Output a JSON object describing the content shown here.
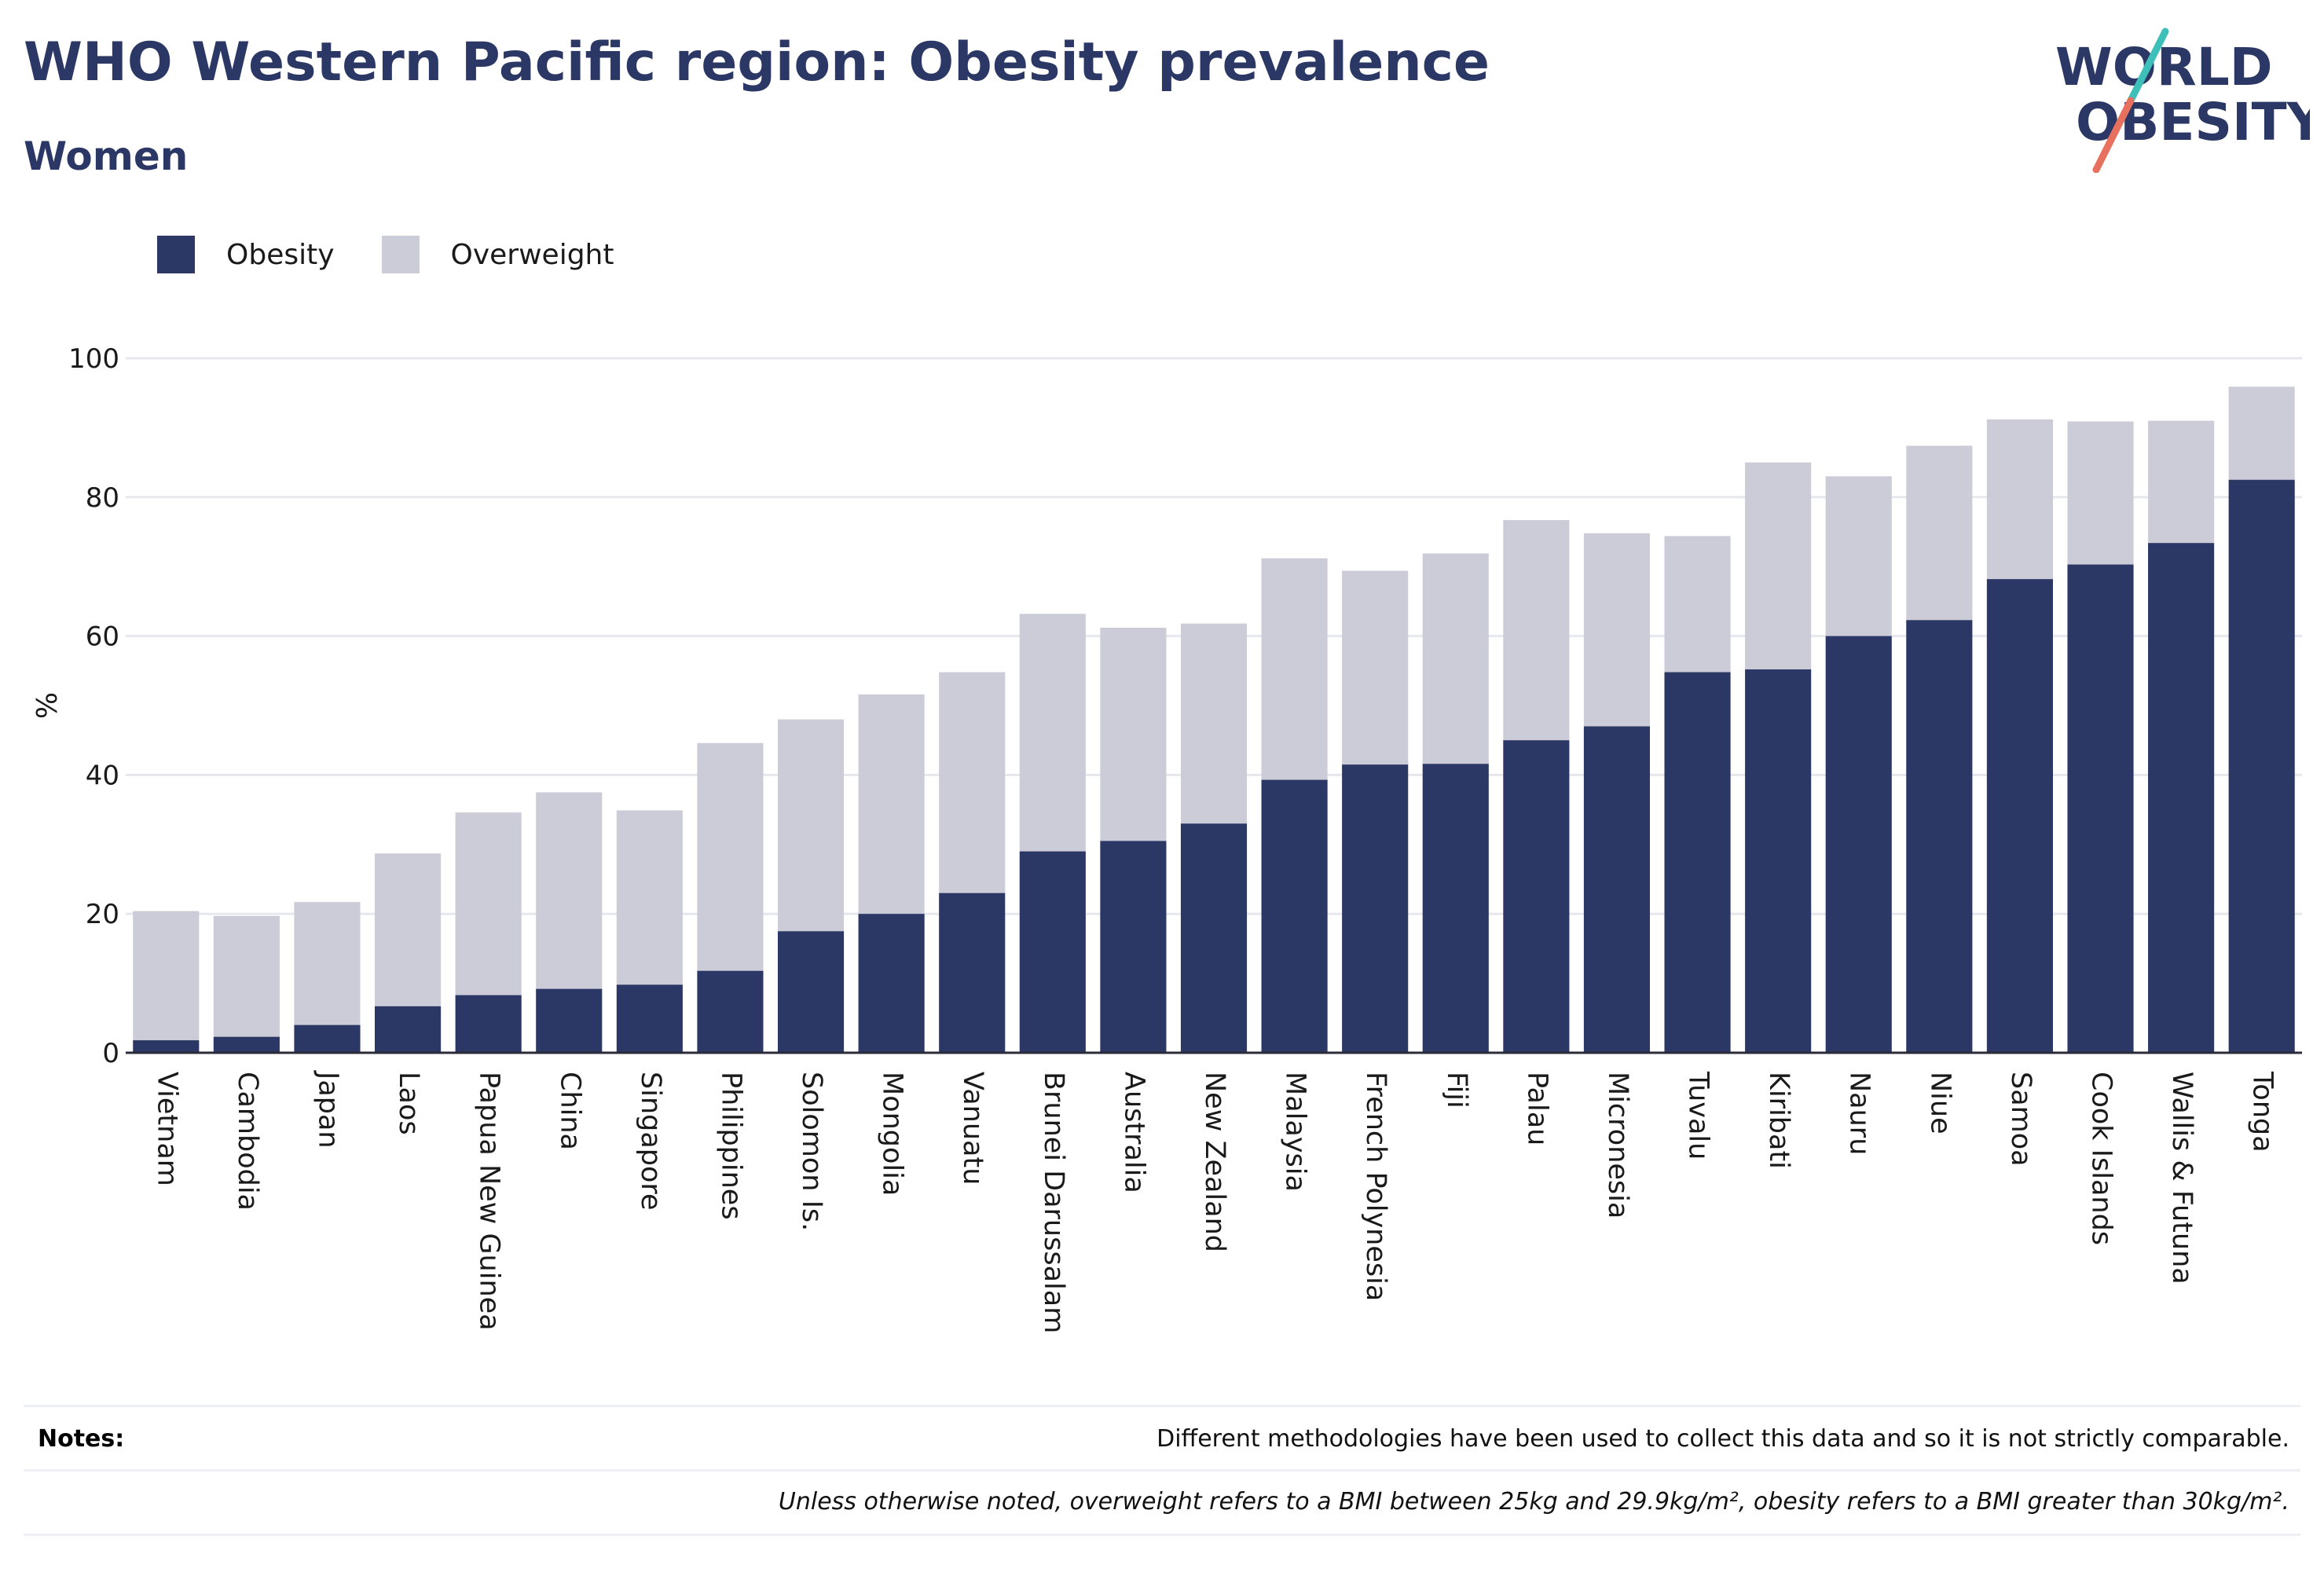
{
  "header": {
    "title": "WHO Western Pacific region: Obesity prevalence",
    "subtitle": "Women"
  },
  "logo": {
    "line1": "WORLD",
    "line2": "OBESITY"
  },
  "colors": {
    "obesity": "#2b3764",
    "overweight": "#cbccd8",
    "logo_teal": "#3fbfb9",
    "logo_coral": "#e8705f",
    "grid": "#e7e8ee"
  },
  "legend": [
    {
      "label": "Obesity",
      "color": "#2b3764"
    },
    {
      "label": "Overweight",
      "color": "#cbccd8"
    }
  ],
  "chart_data": {
    "type": "bar",
    "stacked": true,
    "title": "WHO Western Pacific region: Obesity prevalence",
    "subtitle": "Women",
    "xlabel": "",
    "ylabel": "%",
    "ylim": [
      0,
      100
    ],
    "yticks": [
      0,
      20,
      40,
      60,
      80,
      100
    ],
    "grid": true,
    "legend_position": "top-left",
    "categories": [
      "Vietnam",
      "Cambodia",
      "Japan",
      "Laos",
      "Papua New Guinea",
      "China",
      "Singapore",
      "Philippines",
      "Solomon Is.",
      "Mongolia",
      "Vanuatu",
      "Brunei Darussalam",
      "Australia",
      "New Zealand",
      "Malaysia",
      "French Polynesia",
      "Fiji",
      "Palau",
      "Micronesia",
      "Tuvalu",
      "Kiribati",
      "Nauru",
      "Niue",
      "Samoa",
      "Cook Islands",
      "Wallis & Futuna",
      "Tonga"
    ],
    "series": [
      {
        "name": "Obesity",
        "values": [
          1.8,
          2.3,
          4.0,
          6.7,
          8.3,
          9.2,
          9.8,
          11.8,
          17.5,
          20.0,
          23.0,
          29.0,
          30.5,
          33.0,
          39.3,
          41.5,
          41.6,
          45.0,
          47.0,
          54.8,
          55.2,
          60.0,
          62.3,
          68.2,
          70.3,
          73.4,
          82.5
        ]
      },
      {
        "name": "Overweight",
        "values": [
          18.6,
          17.4,
          17.7,
          22.0,
          26.3,
          28.3,
          25.1,
          32.8,
          30.5,
          31.6,
          31.8,
          34.2,
          30.7,
          28.8,
          31.9,
          27.9,
          30.3,
          31.7,
          27.8,
          19.6,
          29.8,
          23.0,
          25.1,
          23.0,
          20.6,
          17.6,
          13.4
        ]
      }
    ]
  },
  "notes": {
    "label": "Notes:",
    "line1": "Different methodologies have been used to collect this data and so it is not strictly comparable.",
    "line2": "Unless otherwise noted, overweight refers to a BMI between 25kg and 29.9kg/m², obesity refers to a BMI greater than 30kg/m²."
  }
}
